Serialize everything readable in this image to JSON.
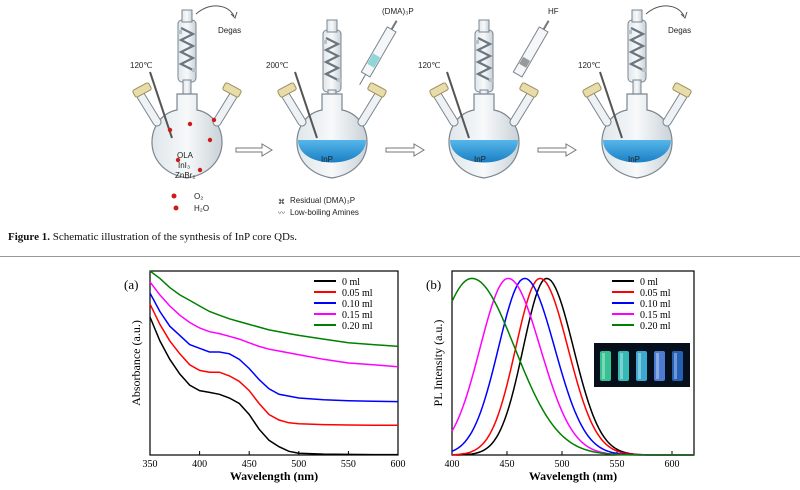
{
  "scheme": {
    "steps": [
      {
        "temperature": "120℃",
        "gas": "Degas"
      },
      {
        "temperature": "200℃",
        "reagent": "(DMA)₃P"
      },
      {
        "temperature": "120℃",
        "reagent": "HF"
      },
      {
        "temperature": "120℃",
        "gas": "Degas"
      }
    ],
    "flask1_contents": [
      "OLA",
      "InI₃",
      "ZnBr₂"
    ],
    "flask_label": "InP",
    "legend": {
      "o2": "O₂",
      "h2o": "H₂O",
      "residual": "Residual (DMA)₃P",
      "amines": "Low-boiling Amines"
    }
  },
  "caption": {
    "bold": "Figure 1.",
    "text": " Schematic illustration of the synthesis of InP core QDs."
  },
  "colors": {
    "series": [
      "#000000",
      "#ff0000",
      "#0000ff",
      "#ff00ff",
      "#008000"
    ],
    "solution": "#3ea3de"
  },
  "chart_data": [
    {
      "type": "line",
      "panel_label": "(a)",
      "xlabel": "Wavelength (nm)",
      "ylabel": "Absorbance (a.u.)",
      "xlim": [
        350,
        600
      ],
      "ylim": [
        0,
        1
      ],
      "xticks": [
        350,
        400,
        450,
        500,
        550,
        600
      ],
      "legend_position": "top-right",
      "x": [
        350,
        360,
        370,
        380,
        390,
        400,
        410,
        420,
        430,
        440,
        450,
        460,
        470,
        480,
        490,
        500,
        525,
        550,
        575,
        600
      ],
      "series": [
        {
          "name": "0 ml",
          "values": [
            0.75,
            0.62,
            0.52,
            0.44,
            0.38,
            0.35,
            0.34,
            0.33,
            0.31,
            0.28,
            0.22,
            0.14,
            0.08,
            0.045,
            0.02,
            0.01,
            0.005,
            0.003,
            0.002,
            0.002
          ]
        },
        {
          "name": "0.05 ml",
          "values": [
            0.82,
            0.71,
            0.62,
            0.55,
            0.49,
            0.46,
            0.45,
            0.45,
            0.43,
            0.4,
            0.35,
            0.28,
            0.22,
            0.19,
            0.175,
            0.17,
            0.165,
            0.163,
            0.162,
            0.162
          ]
        },
        {
          "name": "0.10 ml",
          "values": [
            0.88,
            0.78,
            0.7,
            0.65,
            0.6,
            0.58,
            0.56,
            0.56,
            0.55,
            0.52,
            0.47,
            0.41,
            0.36,
            0.33,
            0.32,
            0.31,
            0.3,
            0.295,
            0.292,
            0.29
          ]
        },
        {
          "name": "0.15 ml",
          "values": [
            0.94,
            0.87,
            0.81,
            0.76,
            0.72,
            0.69,
            0.67,
            0.66,
            0.645,
            0.63,
            0.61,
            0.59,
            0.575,
            0.565,
            0.555,
            0.545,
            0.52,
            0.5,
            0.49,
            0.48
          ]
        },
        {
          "name": "0.20 ml",
          "values": [
            1.0,
            0.96,
            0.91,
            0.87,
            0.84,
            0.81,
            0.78,
            0.76,
            0.74,
            0.725,
            0.71,
            0.695,
            0.68,
            0.67,
            0.66,
            0.65,
            0.63,
            0.61,
            0.6,
            0.59
          ]
        }
      ]
    },
    {
      "type": "line",
      "panel_label": "(b)",
      "xlabel": "Wavelength (nm)",
      "ylabel": "PL Intensity (a.u.)",
      "xlim": [
        400,
        620
      ],
      "ylim": [
        0,
        1
      ],
      "xticks": [
        400,
        450,
        500,
        550,
        600
      ],
      "legend_position": "top-right",
      "inset": "photograph of five vials of QD solutions under UV light",
      "series": [
        {
          "name": "0 ml",
          "peak": 486,
          "fwhm": 50
        },
        {
          "name": "0.05 ml",
          "peak": 480,
          "fwhm": 52
        },
        {
          "name": "0.10 ml",
          "peak": 466,
          "fwhm": 56
        },
        {
          "name": "0.15 ml",
          "peak": 451,
          "fwhm": 60
        },
        {
          "name": "0.20 ml",
          "peak": 418,
          "fwhm": 80
        }
      ]
    }
  ]
}
